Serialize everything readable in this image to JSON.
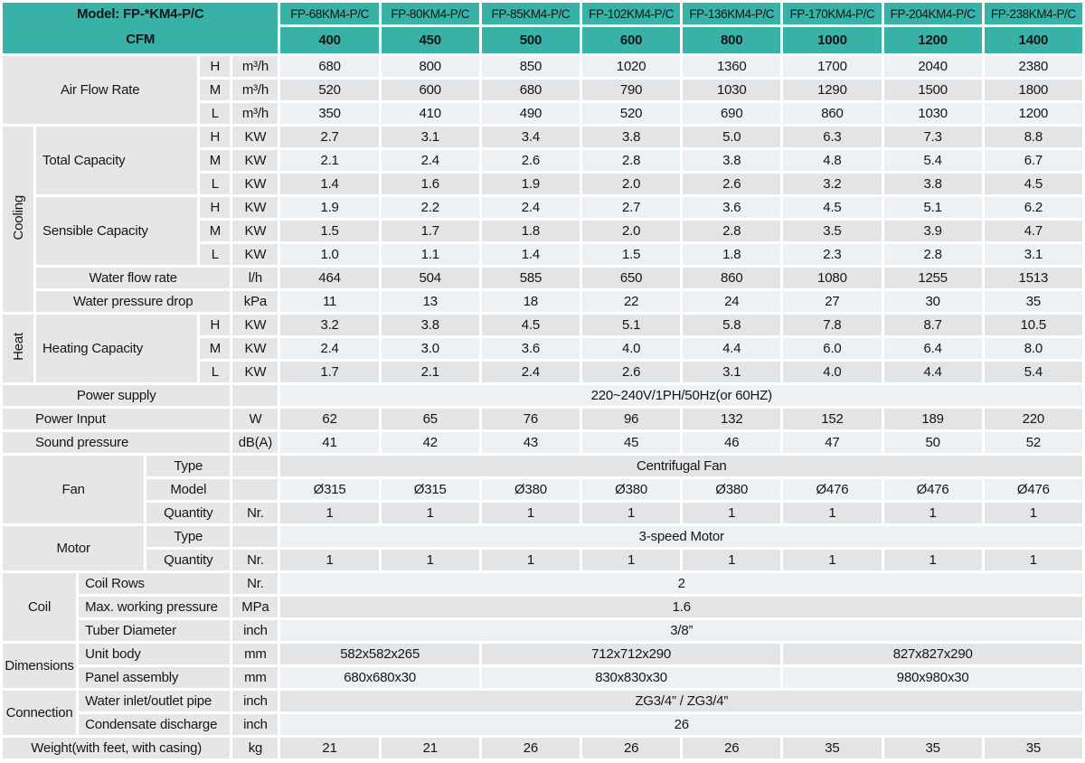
{
  "title": {
    "model": "Model: FP-*KM4-P/C",
    "cfm": "CFM"
  },
  "columns": {
    "models": [
      "FP-68KM4-P/C",
      "FP-80KM4-P/C",
      "FP-85KM4-P/C",
      "FP-102KM4-P/C",
      "FP-136KM4-P/C",
      "FP-170KM4-P/C",
      "FP-204KM4-P/C",
      "FP-238KM4-P/C"
    ],
    "cfm_values": [
      "400",
      "450",
      "500",
      "600",
      "800",
      "1000",
      "1200",
      "1400"
    ]
  },
  "colors": {
    "header_teal": "#38b2a7",
    "label_gray": "#e4e6e8",
    "row_light": "#edf1f3",
    "row_dark": "#e2e4e6",
    "grid_white": "#ffffff",
    "text": "#161616"
  },
  "rows": [
    {
      "shade": "sa",
      "cells": [
        {
          "t": "Air Flow Rate",
          "k": "namec",
          "cs": 4,
          "rs": 3
        },
        {
          "t": "H",
          "k": "sub"
        },
        {
          "t": "m³/h",
          "k": "unit"
        },
        {
          "t": "680",
          "k": "d"
        },
        {
          "t": "800",
          "k": "d"
        },
        {
          "t": "850",
          "k": "d"
        },
        {
          "t": "1020",
          "k": "d"
        },
        {
          "t": "1360",
          "k": "d"
        },
        {
          "t": "1700",
          "k": "d"
        },
        {
          "t": "2040",
          "k": "d"
        },
        {
          "t": "2380",
          "k": "d"
        }
      ]
    },
    {
      "shade": "sb",
      "cells": [
        {
          "t": "M",
          "k": "sub"
        },
        {
          "t": "m³/h",
          "k": "unit"
        },
        {
          "t": "520",
          "k": "d"
        },
        {
          "t": "600",
          "k": "d"
        },
        {
          "t": "680",
          "k": "d"
        },
        {
          "t": "790",
          "k": "d"
        },
        {
          "t": "1030",
          "k": "d"
        },
        {
          "t": "1290",
          "k": "d"
        },
        {
          "t": "1500",
          "k": "d"
        },
        {
          "t": "1800",
          "k": "d"
        }
      ]
    },
    {
      "shade": "sa",
      "cells": [
        {
          "t": "L",
          "k": "sub"
        },
        {
          "t": "m³/h",
          "k": "unit"
        },
        {
          "t": "350",
          "k": "d"
        },
        {
          "t": "410",
          "k": "d"
        },
        {
          "t": "490",
          "k": "d"
        },
        {
          "t": "520",
          "k": "d"
        },
        {
          "t": "690",
          "k": "d"
        },
        {
          "t": "860",
          "k": "d"
        },
        {
          "t": "1030",
          "k": "d"
        },
        {
          "t": "1200",
          "k": "d"
        }
      ]
    },
    {
      "shade": "sb",
      "cells": [
        {
          "t": "Cooling",
          "k": "group",
          "rs": 8
        },
        {
          "t": "Total Capacity",
          "k": "name",
          "cs": 3,
          "rs": 3
        },
        {
          "t": "H",
          "k": "sub"
        },
        {
          "t": "KW",
          "k": "unit"
        },
        {
          "t": "2.7",
          "k": "d"
        },
        {
          "t": "3.1",
          "k": "d"
        },
        {
          "t": "3.4",
          "k": "d"
        },
        {
          "t": "3.8",
          "k": "d"
        },
        {
          "t": "5.0",
          "k": "d"
        },
        {
          "t": "6.3",
          "k": "d"
        },
        {
          "t": "7.3",
          "k": "d"
        },
        {
          "t": "8.8",
          "k": "d"
        }
      ]
    },
    {
      "shade": "sa",
      "cells": [
        {
          "t": "M",
          "k": "sub"
        },
        {
          "t": "KW",
          "k": "unit"
        },
        {
          "t": "2.1",
          "k": "d"
        },
        {
          "t": "2.4",
          "k": "d"
        },
        {
          "t": "2.6",
          "k": "d"
        },
        {
          "t": "2.8",
          "k": "d"
        },
        {
          "t": "3.8",
          "k": "d"
        },
        {
          "t": "4.8",
          "k": "d"
        },
        {
          "t": "5.4",
          "k": "d"
        },
        {
          "t": "6.7",
          "k": "d"
        }
      ]
    },
    {
      "shade": "sb",
      "cells": [
        {
          "t": "L",
          "k": "sub"
        },
        {
          "t": "KW",
          "k": "unit"
        },
        {
          "t": "1.4",
          "k": "d"
        },
        {
          "t": "1.6",
          "k": "d"
        },
        {
          "t": "1.9",
          "k": "d"
        },
        {
          "t": "2.0",
          "k": "d"
        },
        {
          "t": "2.6",
          "k": "d"
        },
        {
          "t": "3.2",
          "k": "d"
        },
        {
          "t": "3.8",
          "k": "d"
        },
        {
          "t": "4.5",
          "k": "d"
        }
      ]
    },
    {
      "shade": "sa",
      "cells": [
        {
          "t": "Sensible Capacity",
          "k": "name",
          "cs": 3,
          "rs": 3
        },
        {
          "t": "H",
          "k": "sub"
        },
        {
          "t": "KW",
          "k": "unit"
        },
        {
          "t": "1.9",
          "k": "d"
        },
        {
          "t": "2.2",
          "k": "d"
        },
        {
          "t": "2.4",
          "k": "d"
        },
        {
          "t": "2.7",
          "k": "d"
        },
        {
          "t": "3.6",
          "k": "d"
        },
        {
          "t": "4.5",
          "k": "d"
        },
        {
          "t": "5.1",
          "k": "d"
        },
        {
          "t": "6.2",
          "k": "d"
        }
      ]
    },
    {
      "shade": "sb",
      "cells": [
        {
          "t": "M",
          "k": "sub"
        },
        {
          "t": "KW",
          "k": "unit"
        },
        {
          "t": "1.5",
          "k": "d"
        },
        {
          "t": "1.7",
          "k": "d"
        },
        {
          "t": "1.8",
          "k": "d"
        },
        {
          "t": "2.0",
          "k": "d"
        },
        {
          "t": "2.8",
          "k": "d"
        },
        {
          "t": "3.5",
          "k": "d"
        },
        {
          "t": "3.9",
          "k": "d"
        },
        {
          "t": "4.7",
          "k": "d"
        }
      ]
    },
    {
      "shade": "sa",
      "cells": [
        {
          "t": "L",
          "k": "sub"
        },
        {
          "t": "KW",
          "k": "unit"
        },
        {
          "t": "1.0",
          "k": "d"
        },
        {
          "t": "1.1",
          "k": "d"
        },
        {
          "t": "1.4",
          "k": "d"
        },
        {
          "t": "1.5",
          "k": "d"
        },
        {
          "t": "1.8",
          "k": "d"
        },
        {
          "t": "2.3",
          "k": "d"
        },
        {
          "t": "2.8",
          "k": "d"
        },
        {
          "t": "3.1",
          "k": "d"
        }
      ]
    },
    {
      "shade": "sb",
      "cells": [
        {
          "t": "Water flow rate",
          "k": "namec",
          "cs": 4
        },
        {
          "t": "l/h",
          "k": "unit"
        },
        {
          "t": "464",
          "k": "d"
        },
        {
          "t": "504",
          "k": "d"
        },
        {
          "t": "585",
          "k": "d"
        },
        {
          "t": "650",
          "k": "d"
        },
        {
          "t": "860",
          "k": "d"
        },
        {
          "t": "1080",
          "k": "d"
        },
        {
          "t": "1255",
          "k": "d"
        },
        {
          "t": "1513",
          "k": "d"
        }
      ]
    },
    {
      "shade": "sa",
      "cells": [
        {
          "t": "Water pressure drop",
          "k": "namec",
          "cs": 4
        },
        {
          "t": "kPa",
          "k": "unit"
        },
        {
          "t": "11",
          "k": "d"
        },
        {
          "t": "13",
          "k": "d"
        },
        {
          "t": "18",
          "k": "d"
        },
        {
          "t": "22",
          "k": "d"
        },
        {
          "t": "24",
          "k": "d"
        },
        {
          "t": "27",
          "k": "d"
        },
        {
          "t": "30",
          "k": "d"
        },
        {
          "t": "35",
          "k": "d"
        }
      ]
    },
    {
      "shade": "sb",
      "cells": [
        {
          "t": "Heat",
          "k": "group",
          "rs": 3
        },
        {
          "t": "Heating Capacity",
          "k": "name",
          "cs": 3,
          "rs": 3
        },
        {
          "t": "H",
          "k": "sub"
        },
        {
          "t": "KW",
          "k": "unit"
        },
        {
          "t": "3.2",
          "k": "d"
        },
        {
          "t": "3.8",
          "k": "d"
        },
        {
          "t": "4.5",
          "k": "d"
        },
        {
          "t": "5.1",
          "k": "d"
        },
        {
          "t": "5.8",
          "k": "d"
        },
        {
          "t": "7.8",
          "k": "d"
        },
        {
          "t": "8.7",
          "k": "d"
        },
        {
          "t": "10.5",
          "k": "d"
        }
      ]
    },
    {
      "shade": "sa",
      "cells": [
        {
          "t": "M",
          "k": "sub"
        },
        {
          "t": "KW",
          "k": "unit"
        },
        {
          "t": "2.4",
          "k": "d"
        },
        {
          "t": "3.0",
          "k": "d"
        },
        {
          "t": "3.6",
          "k": "d"
        },
        {
          "t": "4.0",
          "k": "d"
        },
        {
          "t": "4.4",
          "k": "d"
        },
        {
          "t": "6.0",
          "k": "d"
        },
        {
          "t": "6.4",
          "k": "d"
        },
        {
          "t": "8.0",
          "k": "d"
        }
      ]
    },
    {
      "shade": "sb",
      "cells": [
        {
          "t": "L",
          "k": "sub"
        },
        {
          "t": "KW",
          "k": "unit"
        },
        {
          "t": "1.7",
          "k": "d"
        },
        {
          "t": "2.1",
          "k": "d"
        },
        {
          "t": "2.4",
          "k": "d"
        },
        {
          "t": "2.6",
          "k": "d"
        },
        {
          "t": "3.1",
          "k": "d"
        },
        {
          "t": "4.0",
          "k": "d"
        },
        {
          "t": "4.4",
          "k": "d"
        },
        {
          "t": "5.4",
          "k": "d"
        }
      ]
    },
    {
      "shade": "sa",
      "cells": [
        {
          "t": "Power supply",
          "k": "namec",
          "cs": 5
        },
        {
          "t": "",
          "k": "unit"
        },
        {
          "t": "220~240V/1PH/50Hz(or 60HZ)",
          "k": "ds",
          "cs": 8
        }
      ]
    },
    {
      "shade": "sb",
      "cells": [
        {
          "t": "Power Input",
          "k": "name36",
          "cs": 5
        },
        {
          "t": "W",
          "k": "unit"
        },
        {
          "t": "62",
          "k": "d"
        },
        {
          "t": "65",
          "k": "d"
        },
        {
          "t": "76",
          "k": "d"
        },
        {
          "t": "96",
          "k": "d"
        },
        {
          "t": "132",
          "k": "d"
        },
        {
          "t": "152",
          "k": "d"
        },
        {
          "t": "189",
          "k": "d"
        },
        {
          "t": "220",
          "k": "d"
        }
      ]
    },
    {
      "shade": "sa",
      "cells": [
        {
          "t": "Sound pressure",
          "k": "name36",
          "cs": 5
        },
        {
          "t": "dB(A)",
          "k": "unit"
        },
        {
          "t": "41",
          "k": "d"
        },
        {
          "t": "42",
          "k": "d"
        },
        {
          "t": "43",
          "k": "d"
        },
        {
          "t": "45",
          "k": "d"
        },
        {
          "t": "46",
          "k": "d"
        },
        {
          "t": "47",
          "k": "d"
        },
        {
          "t": "50",
          "k": "d"
        },
        {
          "t": "52",
          "k": "d"
        }
      ]
    },
    {
      "shade": "sb",
      "cells": [
        {
          "t": "Fan",
          "k": "ghead",
          "cs": 3,
          "rs": 3
        },
        {
          "t": "Type",
          "k": "namec",
          "cs": 2
        },
        {
          "t": "",
          "k": "unit"
        },
        {
          "t": "Centrifugal Fan",
          "k": "ds",
          "cs": 8
        }
      ]
    },
    {
      "shade": "sa",
      "cells": [
        {
          "t": "Model",
          "k": "namec",
          "cs": 2
        },
        {
          "t": "",
          "k": "unit"
        },
        {
          "t": "Ø315",
          "k": "d"
        },
        {
          "t": "Ø315",
          "k": "d"
        },
        {
          "t": "Ø380",
          "k": "d"
        },
        {
          "t": "Ø380",
          "k": "d"
        },
        {
          "t": "Ø380",
          "k": "d"
        },
        {
          "t": "Ø476",
          "k": "d"
        },
        {
          "t": "Ø476",
          "k": "d"
        },
        {
          "t": "Ø476",
          "k": "d"
        }
      ]
    },
    {
      "shade": "sb",
      "cells": [
        {
          "t": "Quantity",
          "k": "namec",
          "cs": 2
        },
        {
          "t": "Nr.",
          "k": "unit"
        },
        {
          "t": "1",
          "k": "d"
        },
        {
          "t": "1",
          "k": "d"
        },
        {
          "t": "1",
          "k": "d"
        },
        {
          "t": "1",
          "k": "d"
        },
        {
          "t": "1",
          "k": "d"
        },
        {
          "t": "1",
          "k": "d"
        },
        {
          "t": "1",
          "k": "d"
        },
        {
          "t": "1",
          "k": "d"
        }
      ]
    },
    {
      "shade": "sa",
      "cells": [
        {
          "t": "Motor",
          "k": "ghead",
          "cs": 3,
          "rs": 2
        },
        {
          "t": "Type",
          "k": "namec",
          "cs": 2
        },
        {
          "t": "",
          "k": "unit"
        },
        {
          "t": "3-speed Motor",
          "k": "ds",
          "cs": 8
        }
      ]
    },
    {
      "shade": "sb",
      "cells": [
        {
          "t": "Quantity",
          "k": "namec",
          "cs": 2
        },
        {
          "t": "Nr.",
          "k": "unit"
        },
        {
          "t": "1",
          "k": "d"
        },
        {
          "t": "1",
          "k": "d"
        },
        {
          "t": "1",
          "k": "d"
        },
        {
          "t": "1",
          "k": "d"
        },
        {
          "t": "1",
          "k": "d"
        },
        {
          "t": "1",
          "k": "d"
        },
        {
          "t": "1",
          "k": "d"
        },
        {
          "t": "1",
          "k": "d"
        }
      ]
    },
    {
      "shade": "sa",
      "cells": [
        {
          "t": "Coil",
          "k": "ghead",
          "cs": 2,
          "rs": 3
        },
        {
          "t": "Coil Rows",
          "k": "name",
          "cs": 3
        },
        {
          "t": "Nr.",
          "k": "unit"
        },
        {
          "t": "2",
          "k": "ds",
          "cs": 8
        }
      ]
    },
    {
      "shade": "sb",
      "cells": [
        {
          "t": "Max. working pressure",
          "k": "name",
          "cs": 3
        },
        {
          "t": "MPa",
          "k": "unit"
        },
        {
          "t": "1.6",
          "k": "ds",
          "cs": 8
        }
      ]
    },
    {
      "shade": "sa",
      "cells": [
        {
          "t": "Tuber Diameter",
          "k": "name",
          "cs": 3
        },
        {
          "t": "inch",
          "k": "unit"
        },
        {
          "t": "3/8”",
          "k": "ds",
          "cs": 8
        }
      ]
    },
    {
      "shade": "sb",
      "cells": [
        {
          "t": "Dimensions",
          "k": "ghead",
          "cs": 2,
          "rs": 2
        },
        {
          "t": "Unit body",
          "k": "name",
          "cs": 3
        },
        {
          "t": "mm",
          "k": "unit"
        },
        {
          "t": "582x582x265",
          "k": "ds",
          "cs": 2
        },
        {
          "t": "712x712x290",
          "k": "ds",
          "cs": 3
        },
        {
          "t": "827x827x290",
          "k": "ds",
          "cs": 3
        }
      ]
    },
    {
      "shade": "sa",
      "cells": [
        {
          "t": "Panel assembly",
          "k": "name",
          "cs": 3
        },
        {
          "t": "mm",
          "k": "unit"
        },
        {
          "t": "680x680x30",
          "k": "ds",
          "cs": 2
        },
        {
          "t": "830x830x30",
          "k": "ds",
          "cs": 3
        },
        {
          "t": "980x980x30",
          "k": "ds",
          "cs": 3
        }
      ]
    },
    {
      "shade": "sb",
      "cells": [
        {
          "t": "Connection",
          "k": "ghead",
          "cs": 2,
          "rs": 2
        },
        {
          "t": "Water inlet/outlet pipe",
          "k": "name",
          "cs": 3
        },
        {
          "t": "inch",
          "k": "unit"
        },
        {
          "t": "ZG3/4” / ZG3/4”",
          "k": "ds",
          "cs": 8
        }
      ]
    },
    {
      "shade": "sa",
      "cells": [
        {
          "t": "Condensate discharge",
          "k": "name",
          "cs": 3
        },
        {
          "t": "inch",
          "k": "unit"
        },
        {
          "t": "26",
          "k": "ds",
          "cs": 8
        }
      ]
    },
    {
      "shade": "sb",
      "cells": [
        {
          "t": "Weight(with feet, with casing)",
          "k": "namec",
          "cs": 5
        },
        {
          "t": "kg",
          "k": "unit"
        },
        {
          "t": "21",
          "k": "d"
        },
        {
          "t": "21",
          "k": "d"
        },
        {
          "t": "26",
          "k": "d"
        },
        {
          "t": "26",
          "k": "d"
        },
        {
          "t": "26",
          "k": "d"
        },
        {
          "t": "35",
          "k": "d"
        },
        {
          "t": "35",
          "k": "d"
        },
        {
          "t": "35",
          "k": "d"
        }
      ]
    }
  ]
}
